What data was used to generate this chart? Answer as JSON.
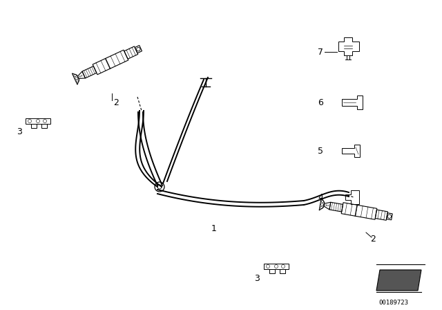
{
  "bg_color": "#ffffff",
  "fig_width": 6.4,
  "fig_height": 4.48,
  "dpi": 100,
  "watermark": "00189723",
  "line_color": "#000000"
}
